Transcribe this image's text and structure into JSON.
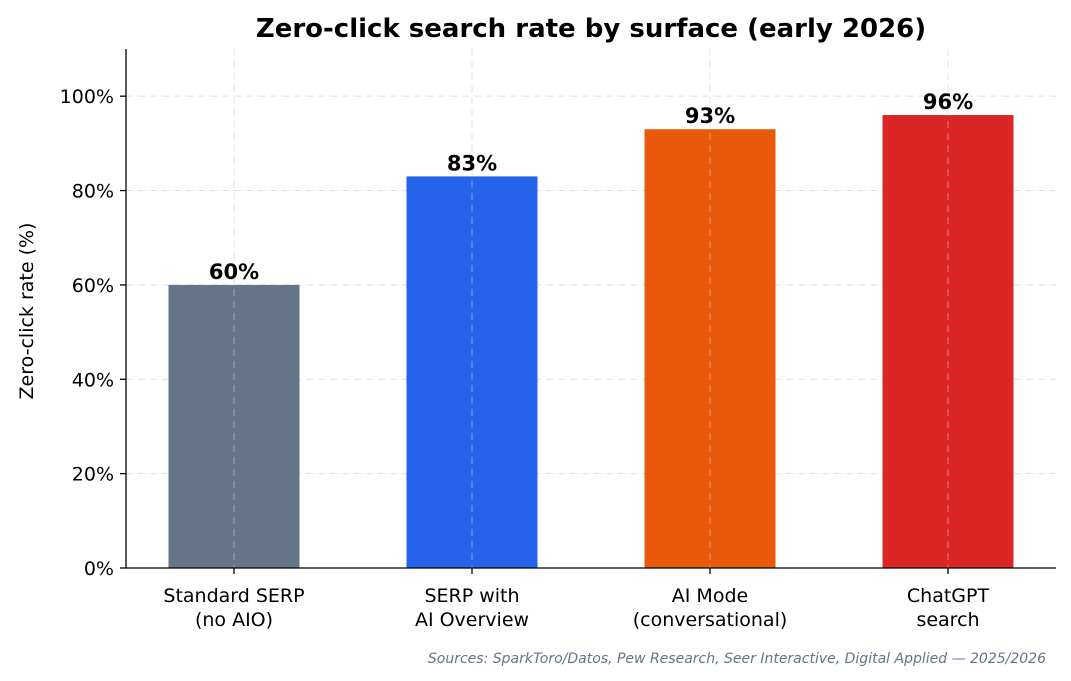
{
  "chart_data": {
    "type": "bar",
    "title": "Zero-click search rate by surface (early 2026)",
    "ylabel": "Zero-click rate (%)",
    "xlabel": "",
    "categories": [
      [
        "Standard SERP",
        "(no AIO)"
      ],
      [
        "SERP with",
        "AI Overview"
      ],
      [
        "AI Mode",
        "(conversational)"
      ],
      [
        "ChatGPT",
        "search"
      ]
    ],
    "values": [
      60,
      83,
      93,
      96
    ],
    "value_labels": [
      "60%",
      "83%",
      "93%",
      "96%"
    ],
    "colors": [
      "#64748b",
      "#2563eb",
      "#ea580c",
      "#dc2626"
    ],
    "ylim": [
      0,
      110
    ],
    "yticks": [
      0,
      20,
      40,
      60,
      80,
      100
    ],
    "ytick_labels": [
      "0%",
      "20%",
      "40%",
      "60%",
      "80%",
      "100%"
    ],
    "grid": true,
    "source": "Sources: SparkToro/Datos, Pew Research, Seer Interactive, Digital Applied — 2025/2026"
  }
}
